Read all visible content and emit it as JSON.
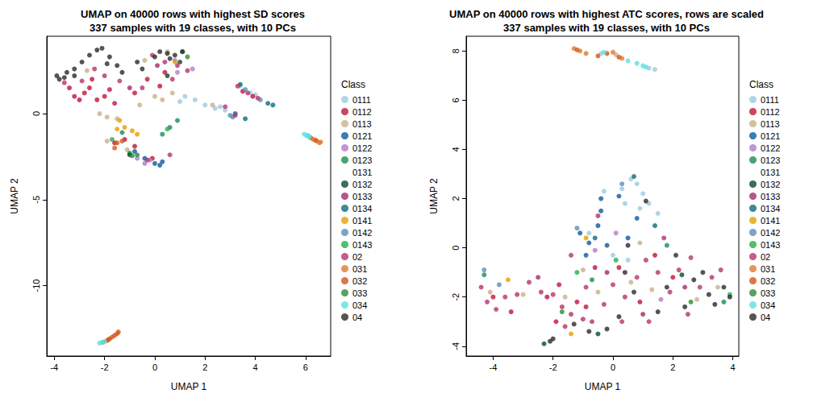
{
  "chart_data": [
    {
      "type": "scatter",
      "title": "UMAP on 40000 rows with highest SD scores\n337 samples with 19 classes, with 10 PCs",
      "xlabel": "UMAP 1",
      "ylabel": "UMAP 2",
      "legend_title": "Class",
      "legend": "right",
      "marker": "circle",
      "grid": false,
      "xlim": [
        -4.3,
        7.0
      ],
      "xticks": [
        -4,
        -2,
        0,
        2,
        4,
        6
      ],
      "ylim": [
        -14.1,
        4.5
      ],
      "yticks": [
        -10,
        -5,
        0
      ],
      "series": [
        {
          "name": "0111",
          "color": "#9ecae1",
          "x": [
            1.2,
            1.6,
            2.0,
            2.4,
            2.8,
            3.4,
            3.8,
            4.0,
            1.0,
            2.6
          ],
          "y": [
            1.0,
            0.8,
            0.5,
            0.3,
            0.2,
            1.6,
            1.2,
            1.1,
            0.7,
            0.4
          ]
        },
        {
          "name": "0112",
          "color": "#c0143c",
          "x": [
            -3.4,
            -3.2,
            -3.0,
            -2.8,
            -2.6,
            -2.3,
            -2.0,
            -1.8,
            -2.5,
            -1.6,
            -0.3,
            0.2,
            -0.8,
            0.4,
            -1.2,
            -1.6,
            -0.8,
            -0.1,
            3.5,
            3.9
          ],
          "y": [
            1.5,
            1.0,
            0.8,
            1.2,
            1.5,
            0.8,
            1.0,
            1.4,
            2.0,
            0.6,
            2.0,
            1.6,
            1.2,
            2.4,
            -1.5,
            -1.7,
            -1.9,
            -2.6,
            1.3,
            1.0
          ]
        },
        {
          "name": "0113",
          "color": "#c8b08a",
          "x": [
            -2.2,
            -1.9,
            -1.5,
            -2.7,
            0.0,
            0.3,
            0.7,
            -0.6,
            0.5,
            -0.4,
            2.3,
            -1.1,
            -1.9
          ],
          "y": [
            0.0,
            -0.2,
            -0.3,
            2.5,
            1.0,
            0.8,
            1.2,
            0.5,
            3.6,
            3.1,
            0.5,
            -2.1,
            -1.6
          ]
        },
        {
          "name": "0121",
          "color": "#0e5a9e",
          "x": [
            -0.8,
            -0.4,
            0.0,
            0.2,
            0.3,
            3.2
          ],
          "y": [
            -2.2,
            -2.6,
            -2.9,
            -3.0,
            -2.8,
            0.0
          ]
        },
        {
          "name": "0122",
          "color": "#b07cd0",
          "x": [
            -0.7,
            -0.4,
            -0.2,
            0.9,
            1.5,
            0.8
          ],
          "y": [
            -2.6,
            -2.9,
            -2.7,
            2.4,
            2.6,
            3.1
          ]
        },
        {
          "name": "0123",
          "color": "#1a8c50",
          "x": [
            -1.0,
            -0.7,
            0.3,
            0.6,
            0.9,
            -1.3
          ],
          "y": [
            -2.3,
            -2.4,
            -1.2,
            -0.8,
            -0.4,
            -1.1
          ]
        },
        {
          "name": "0131",
          "color": "#ffffff",
          "x": [],
          "y": []
        },
        {
          "name": "0132",
          "color": "#0b4a2f",
          "x": [
            0.5,
            1.0,
            -1.0
          ],
          "y": [
            2.2,
            3.0,
            -2.4
          ]
        },
        {
          "name": "0133",
          "color": "#a52a6a",
          "x": [
            0.1,
            -1.0
          ],
          "y": [
            2.8,
            1.5
          ]
        },
        {
          "name": "0134",
          "color": "#0d6e7a",
          "x": [
            4.5,
            4.7,
            3.4,
            3.6
          ],
          "y": [
            0.6,
            0.5,
            1.7,
            -0.3
          ]
        },
        {
          "name": "0141",
          "color": "#e6a000",
          "x": [
            -1.4,
            -1.2,
            -1.5,
            -0.7,
            -0.9,
            0.8
          ],
          "y": [
            -0.4,
            -0.8,
            -0.9,
            -1.2,
            -1.0,
            3.0
          ]
        },
        {
          "name": "0142",
          "color": "#5b8db8",
          "x": [
            3.0,
            3.6,
            4.2,
            3.1
          ],
          "y": [
            -0.1,
            1.4,
            0.8,
            -0.2
          ]
        },
        {
          "name": "0143",
          "color": "#22b04a",
          "x": [
            -1.7,
            0.5,
            1.1
          ],
          "y": [
            -1.5,
            -0.9,
            3.6
          ]
        },
        {
          "name": "02",
          "color": "#b8336a",
          "x": [
            -3.6,
            -2.9,
            -2.4,
            -2.0,
            -1.4,
            -0.1,
            0.4,
            0.9,
            1.3,
            -0.5,
            0.7,
            3.3,
            3.7,
            4.1,
            2.8,
            3.2,
            -0.3,
            0.6
          ],
          "y": [
            1.8,
            1.9,
            2.6,
            2.2,
            1.9,
            3.4,
            3.0,
            2.8,
            2.5,
            1.5,
            2.0,
            1.6,
            1.2,
            0.9,
            0.4,
            -0.1,
            -2.7,
            -2.4
          ]
        },
        {
          "name": "031",
          "color": "#e07b30",
          "x": [
            -2.05,
            -1.85,
            6.3,
            6.45,
            6.6,
            6.55
          ],
          "y": [
            -13.3,
            -13.15,
            -1.5,
            -1.6,
            -1.65,
            -1.7
          ]
        },
        {
          "name": "032",
          "color": "#d2561a",
          "x": [
            -1.9,
            -1.8,
            -1.7,
            -1.6,
            -1.5,
            -1.45,
            6.4,
            6.2,
            -1.5,
            -1.3,
            -1.6
          ],
          "y": [
            -13.2,
            -13.1,
            -13.0,
            -12.9,
            -12.8,
            -12.7,
            -1.55,
            -1.4,
            -1.7,
            -1.6,
            -2.0
          ]
        },
        {
          "name": "033",
          "color": "#2e8b3a",
          "x": [
            -0.9,
            1.3
          ],
          "y": [
            -2.45,
            3.3
          ]
        },
        {
          "name": "034",
          "color": "#5de0e0",
          "x": [
            -2.2,
            -2.1,
            -2.0,
            5.95,
            6.05,
            6.15,
            6.1
          ],
          "y": [
            -13.35,
            -13.3,
            -13.25,
            -1.2,
            -1.3,
            -1.35,
            -1.25
          ]
        },
        {
          "name": "04",
          "color": "#2b2b2b",
          "x": [
            -3.9,
            -3.8,
            -3.5,
            -3.2,
            -2.9,
            -2.6,
            -2.3,
            -2.1,
            -1.8,
            -1.5,
            -1.3,
            -1.9,
            -3.6,
            0.2,
            0.5,
            0.8,
            1.1,
            0.0,
            -0.7,
            -0.5,
            0.6,
            -3.2
          ],
          "y": [
            2.2,
            2.0,
            2.4,
            2.6,
            3.0,
            3.4,
            3.7,
            3.8,
            3.3,
            2.8,
            2.4,
            2.9,
            2.1,
            3.6,
            3.5,
            3.4,
            3.6,
            3.3,
            3.0,
            2.6,
            3.2,
            2.2
          ]
        }
      ]
    },
    {
      "type": "scatter",
      "title": "UMAP on 40000 rows with highest ATC scores, rows are scaled\n337 samples with 19 classes, with 10 PCs",
      "xlabel": "UMAP 1",
      "ylabel": "UMAP 2",
      "legend_title": "Class",
      "legend": "right",
      "marker": "circle",
      "grid": false,
      "xlim": [
        -4.9,
        4.2
      ],
      "xticks": [
        -4,
        -2,
        0,
        2,
        4
      ],
      "ylim": [
        -4.4,
        8.6
      ],
      "yticks": [
        -4,
        -2,
        0,
        2,
        4,
        6,
        8
      ],
      "series": [
        {
          "name": "0111",
          "color": "#9ecae1",
          "x": [
            -0.4,
            1.2,
            1.4,
            0.3,
            0.6,
            0.8,
            1.0,
            1.2,
            0.9,
            1.5,
            0.4,
            -0.3,
            0.5,
            0.0,
            -0.8
          ],
          "y": [
            7.9,
            7.3,
            7.25,
            2.4,
            2.8,
            2.6,
            2.2,
            1.8,
            1.6,
            1.4,
            1.8,
            2.3,
            -0.5,
            -0.3,
            0.6
          ]
        },
        {
          "name": "0112",
          "color": "#c0143c",
          "x": [
            -4.0,
            -3.4,
            -2.2,
            -1.8,
            -1.2,
            -0.9,
            -1.9,
            0.2,
            0.9,
            1.4,
            -0.6,
            2.0
          ],
          "y": [
            -2.0,
            -2.6,
            -2.0,
            -1.5,
            -2.2,
            -2.4,
            -3.0,
            -0.8,
            -2.2,
            -0.3,
            -0.8,
            -1.2
          ]
        },
        {
          "name": "0113",
          "color": "#c8b08a",
          "x": [
            0.1,
            -4.1,
            -3.0,
            -1.6,
            -0.5,
            0.6,
            1.3,
            2.8,
            3.5,
            0.9,
            -1.0
          ],
          "y": [
            7.85,
            -1.8,
            -1.9,
            -2.0,
            -1.8,
            -1.4,
            -1.7,
            -2.1,
            -1.6,
            0.2,
            -0.9
          ]
        },
        {
          "name": "0121",
          "color": "#0e5a9e",
          "x": [
            -0.4,
            0.2,
            0.5,
            -0.8,
            -0.9,
            -0.5,
            -1.1,
            -0.2,
            0.8,
            -0.4
          ],
          "y": [
            1.5,
            2.1,
            0.4,
            0.2,
            -0.3,
            0.9,
            0.6,
            0.1,
            1.2,
            2.0
          ]
        },
        {
          "name": "0122",
          "color": "#b07cd0",
          "x": [
            -0.6,
            0.1,
            1.6
          ],
          "y": [
            -0.1,
            0.6,
            -2.1
          ]
        },
        {
          "name": "0123",
          "color": "#1a8c50",
          "x": [
            -4.3,
            -0.7,
            1.8,
            3.7
          ],
          "y": [
            -1.1,
            -1.3,
            0.1,
            -2.2
          ]
        },
        {
          "name": "0131",
          "color": "#ffffff",
          "x": [],
          "y": []
        },
        {
          "name": "0132",
          "color": "#0b4a2f",
          "x": [
            -0.5,
            2.3,
            -2.3
          ],
          "y": [
            -3.5,
            -1.1,
            -3.9
          ]
        },
        {
          "name": "0133",
          "color": "#a52a6a",
          "x": [
            -2.5,
            -0.2,
            1.0,
            2.4
          ],
          "y": [
            -1.2,
            -1.0,
            -2.7,
            -1.6
          ]
        },
        {
          "name": "0134",
          "color": "#0d6e7a",
          "x": [
            0.7,
            1.4,
            -0.6
          ],
          "y": [
            2.9,
            0.9,
            0.4
          ]
        },
        {
          "name": "0141",
          "color": "#e6a000",
          "x": [
            -1.4,
            -0.9,
            -3.5
          ],
          "y": [
            -3.5,
            0.4,
            -1.3
          ]
        },
        {
          "name": "0142",
          "color": "#5b8db8",
          "x": [
            0.3,
            -1.2,
            -4.3,
            -3.8
          ],
          "y": [
            2.6,
            0.8,
            -0.9,
            -1.5
          ]
        },
        {
          "name": "0143",
          "color": "#22b04a",
          "x": [
            3.9,
            0.1,
            -1.2
          ],
          "y": [
            -1.9,
            -0.5,
            -1.0
          ]
        },
        {
          "name": "02",
          "color": "#b8336a",
          "x": [
            -4.4,
            -4.2,
            -3.9,
            -3.6,
            -3.2,
            -2.8,
            -2.4,
            -2.0,
            -1.7,
            -1.4,
            -1.6,
            -1.0,
            -0.7,
            -0.3,
            0.0,
            0.4,
            0.8,
            1.1,
            1.5,
            1.9,
            2.2,
            2.6,
            2.9,
            3.3,
            3.6,
            1.7,
            -0.5,
            -1.4,
            -0.9,
            0.3,
            2.5,
            1.2
          ],
          "y": [
            -1.6,
            -2.2,
            -2.5,
            -2.0,
            -1.9,
            -1.4,
            -1.8,
            -1.9,
            -2.4,
            -2.7,
            -3.2,
            -2.9,
            -3.0,
            -2.3,
            -1.5,
            -2.0,
            -1.2,
            -0.5,
            -1.0,
            -1.8,
            -0.9,
            -0.4,
            -1.6,
            -1.2,
            -0.9,
            0.4,
            1.3,
            -0.3,
            -1.6,
            -3.0,
            -2.7,
            -3.0
          ]
        },
        {
          "name": "031",
          "color": "#e07b30",
          "x": [
            -1.3,
            -1.1,
            -0.9,
            0.0,
            0.3
          ],
          "y": [
            8.1,
            8.0,
            7.9,
            7.95,
            7.7
          ]
        },
        {
          "name": "032",
          "color": "#d2561a",
          "x": [
            -1.2,
            -0.5,
            -0.2,
            0.2
          ],
          "y": [
            8.05,
            7.8,
            7.9,
            7.75
          ]
        },
        {
          "name": "033",
          "color": "#2e8b3a",
          "x": [
            -1.7,
            2.6
          ],
          "y": [
            -2.6,
            -2.2
          ]
        },
        {
          "name": "034",
          "color": "#5de0e0",
          "x": [
            0.5,
            0.8,
            1.0,
            1.1,
            -0.3
          ],
          "y": [
            7.6,
            7.5,
            7.4,
            7.35,
            7.95
          ]
        },
        {
          "name": "04",
          "color": "#2b2b2b",
          "x": [
            -0.8,
            -1.3,
            -2.1,
            1.1,
            0.5,
            3.2,
            3.7,
            3.9,
            2.7,
            2.4,
            1.5,
            0.7,
            0.2,
            -2.0,
            3.0,
            2.1,
            1.8,
            0.4,
            -0.2,
            3.4
          ],
          "y": [
            -3.4,
            -3.1,
            -3.8,
            1.9,
            0.1,
            -1.9,
            -1.6,
            -2.0,
            -1.3,
            -2.4,
            -2.6,
            -1.8,
            -2.8,
            -3.7,
            -1.0,
            -0.3,
            -1.6,
            -1.0,
            -3.3,
            -2.3
          ]
        }
      ]
    }
  ]
}
